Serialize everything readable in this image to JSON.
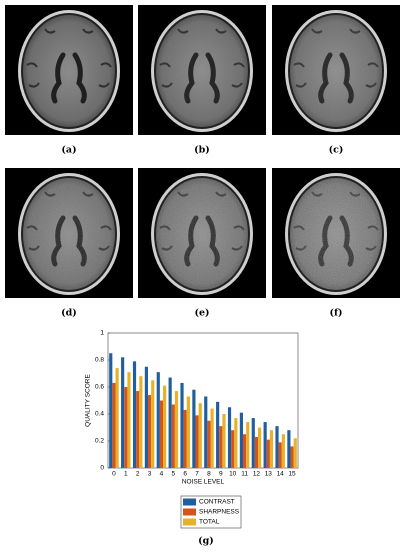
{
  "panels": [
    {
      "label": "(a)"
    },
    {
      "label": "(b)"
    },
    {
      "label": "(c)"
    },
    {
      "label": "(d)"
    },
    {
      "label": "(e)"
    },
    {
      "label": "(f)"
    }
  ],
  "chart_label": "(g)",
  "chart_data": {
    "type": "bar",
    "xlabel": "NOISE LEVEL",
    "ylabel": "QUALITY SCORE",
    "categories": [
      0,
      1,
      2,
      3,
      4,
      5,
      6,
      7,
      8,
      9,
      10,
      11,
      12,
      13,
      14,
      15
    ],
    "series": [
      {
        "name": "CONTRAST",
        "color": "#1f5f9f",
        "values": [
          0.85,
          0.82,
          0.79,
          0.75,
          0.71,
          0.67,
          0.63,
          0.58,
          0.53,
          0.49,
          0.45,
          0.41,
          0.37,
          0.34,
          0.31,
          0.28
        ]
      },
      {
        "name": "SHARPNESS",
        "color": "#d4541c",
        "values": [
          0.63,
          0.6,
          0.57,
          0.54,
          0.5,
          0.47,
          0.43,
          0.39,
          0.35,
          0.31,
          0.28,
          0.25,
          0.23,
          0.21,
          0.19,
          0.16
        ]
      },
      {
        "name": "TOTAL",
        "color": "#e8b228",
        "values": [
          0.74,
          0.71,
          0.68,
          0.65,
          0.61,
          0.57,
          0.53,
          0.48,
          0.44,
          0.4,
          0.37,
          0.34,
          0.3,
          0.28,
          0.25,
          0.22
        ]
      }
    ],
    "ylim": [
      0,
      1
    ],
    "yticks": [
      0,
      0.2,
      0.4,
      0.6,
      0.8,
      1
    ],
    "legend": "below"
  }
}
